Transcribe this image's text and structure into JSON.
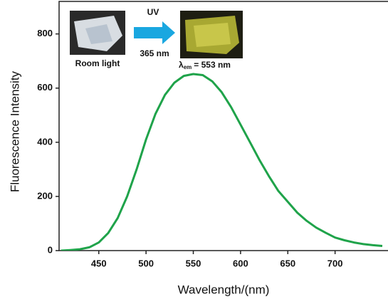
{
  "chart_data": {
    "type": "line",
    "x_label": "Wavelength/(nm)",
    "y_label": "Fluorescence Intensity",
    "x": [
      410,
      420,
      430,
      440,
      450,
      460,
      470,
      480,
      490,
      500,
      510,
      520,
      530,
      540,
      550,
      560,
      570,
      580,
      590,
      600,
      610,
      620,
      630,
      640,
      650,
      660,
      670,
      680,
      690,
      700,
      710,
      720,
      730,
      740,
      750
    ],
    "values": [
      0,
      2,
      5,
      12,
      30,
      65,
      120,
      200,
      300,
      410,
      505,
      575,
      620,
      645,
      652,
      648,
      625,
      585,
      530,
      465,
      400,
      335,
      275,
      220,
      180,
      140,
      110,
      85,
      66,
      48,
      38,
      30,
      24,
      20,
      17
    ],
    "color": "#1fa34a",
    "xlim": [
      408,
      756
    ],
    "ylim": [
      0,
      920
    ],
    "xticks": [
      450,
      500,
      550,
      600,
      650,
      700
    ],
    "yticks": [
      0,
      200,
      400,
      600,
      800
    ],
    "annotations": {
      "uv": "UV",
      "excitation": "365 nm",
      "room_light": "Room light",
      "lambda": "λ",
      "lambda_sub": "em",
      "emission": "= 553 nm"
    }
  }
}
